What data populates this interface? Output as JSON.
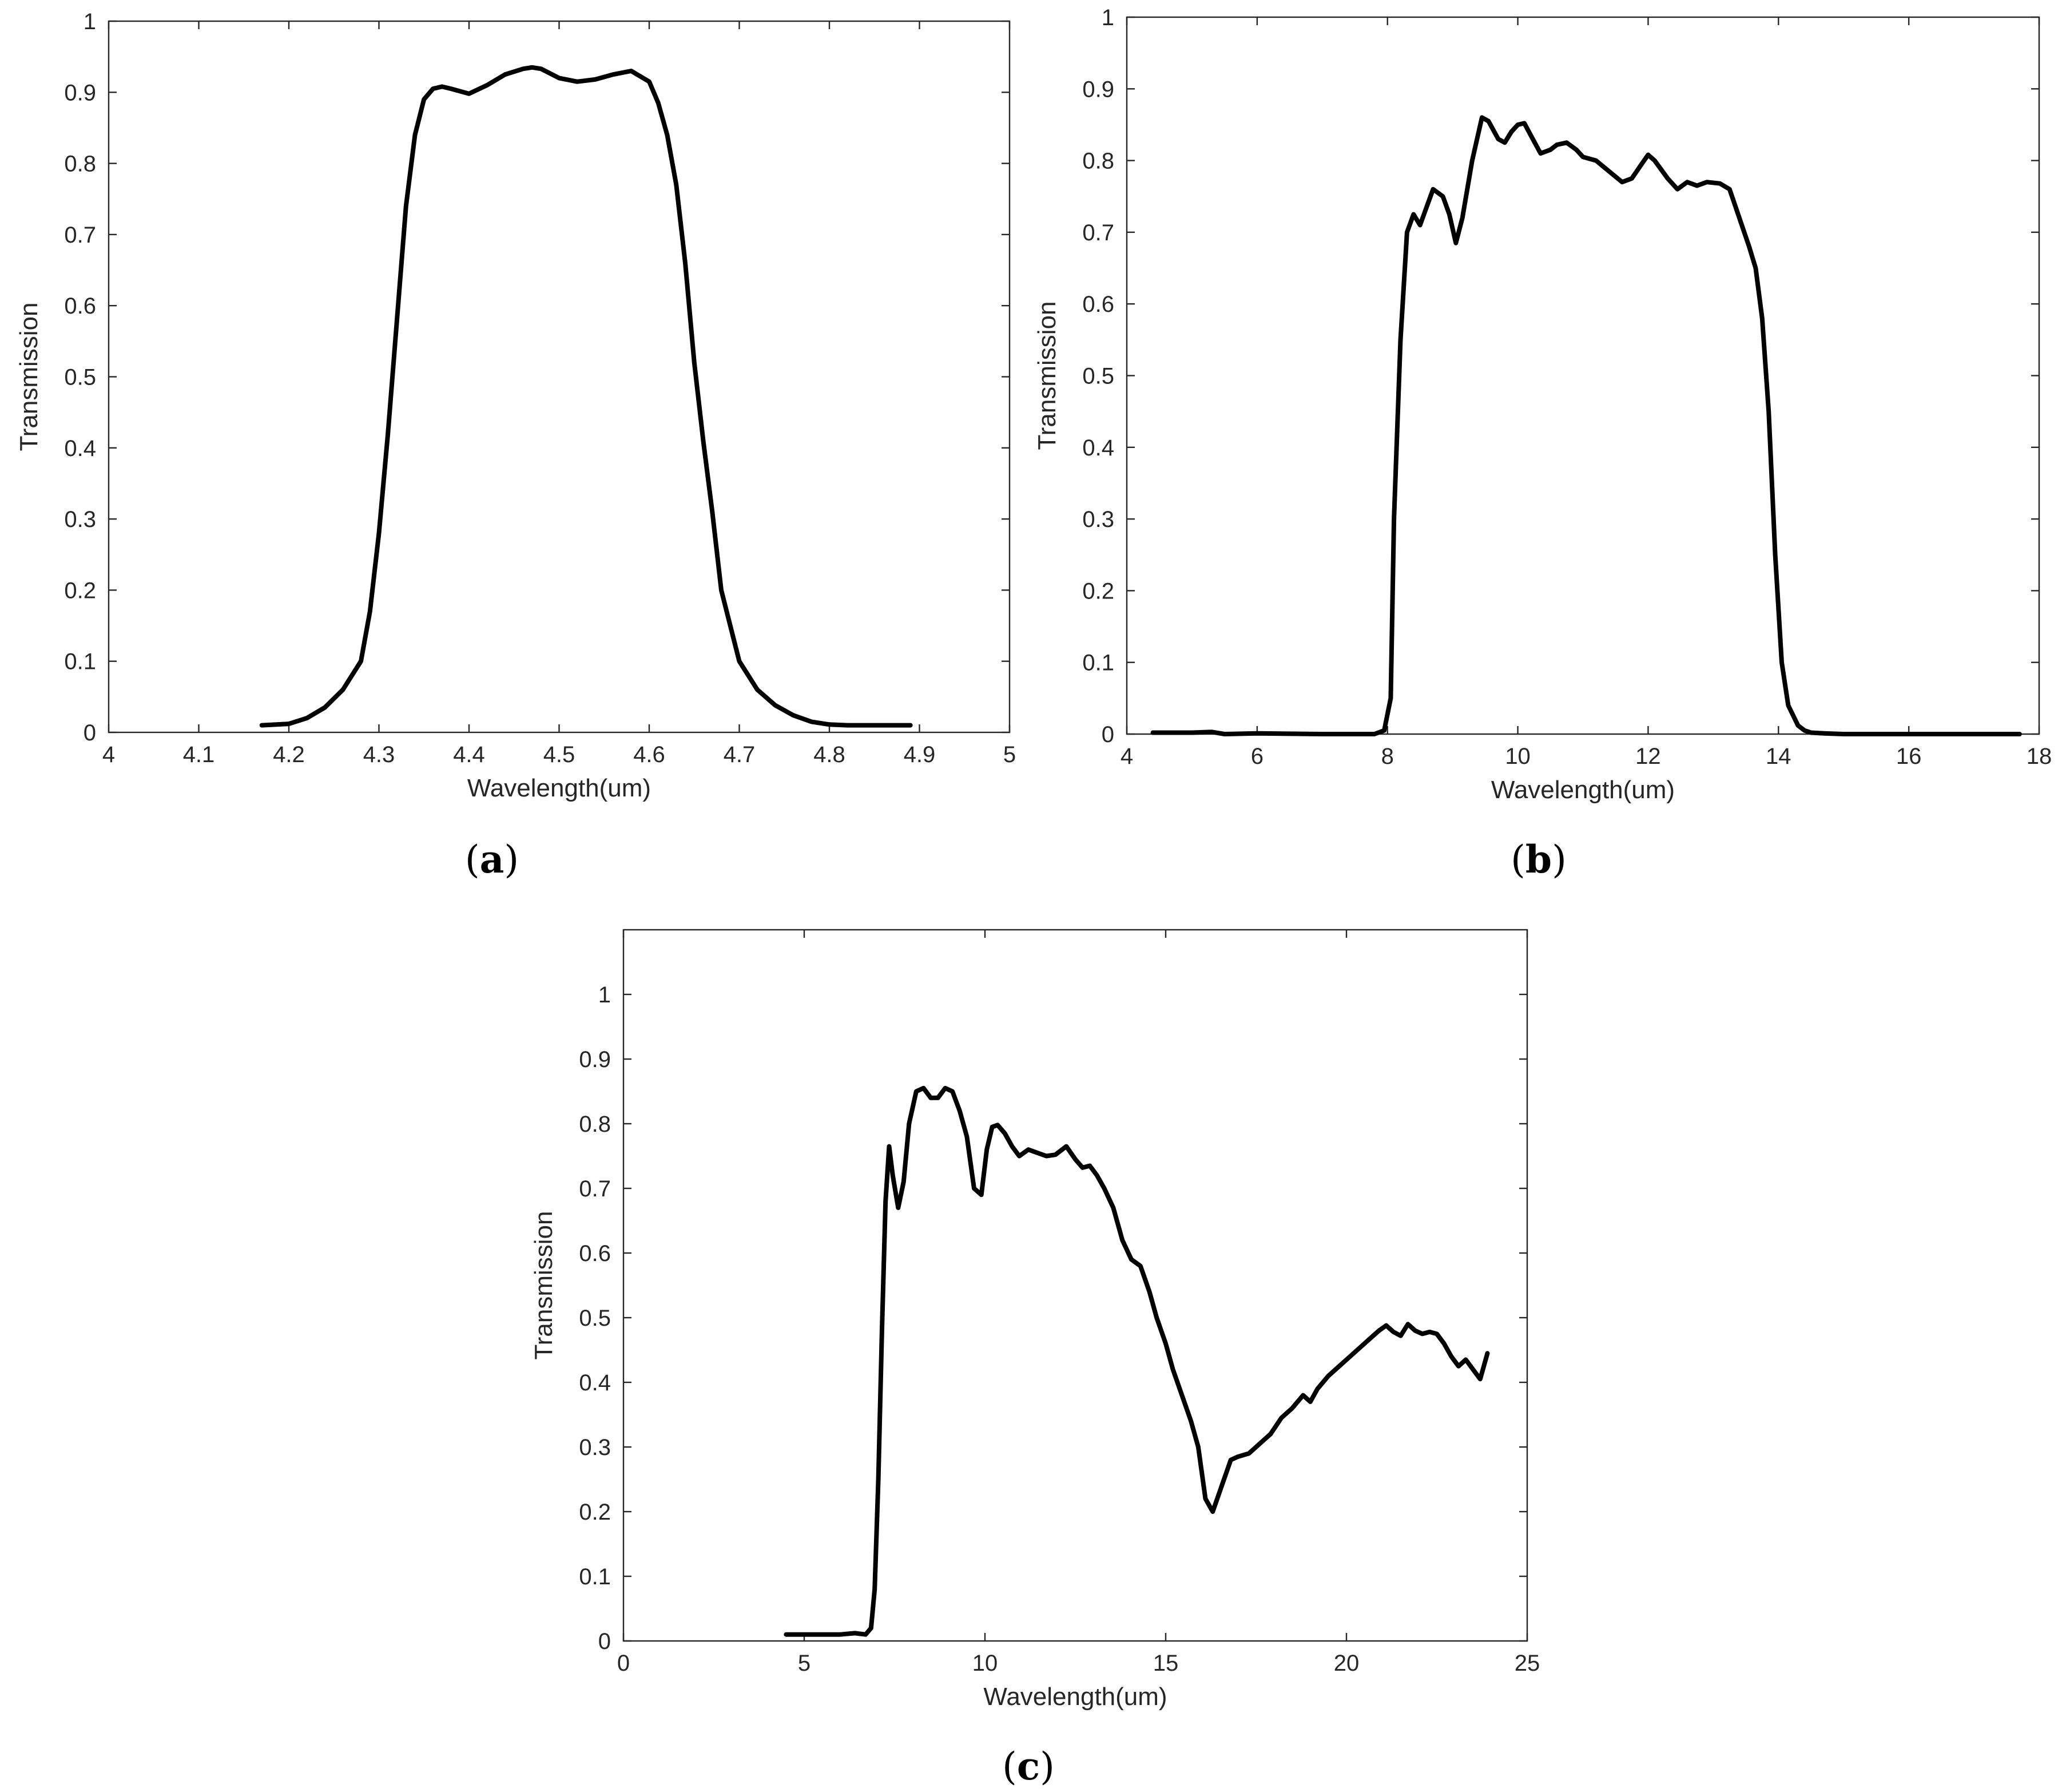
{
  "chart_data": [
    {
      "id": "a",
      "type": "line",
      "panel_label": "a",
      "xlabel": "Wavelength(um)",
      "ylabel": "Transmission",
      "xlim": [
        4,
        5
      ],
      "ylim": [
        0,
        1
      ],
      "xticks": [
        4,
        4.1,
        4.2,
        4.3,
        4.4,
        4.5,
        4.6,
        4.7,
        4.8,
        4.9,
        5
      ],
      "yticks": [
        0,
        0.1,
        0.2,
        0.3,
        0.4,
        0.5,
        0.6,
        0.7,
        0.8,
        0.9,
        1
      ],
      "grid": false,
      "series": [
        {
          "x": [
            4.17,
            4.2,
            4.22,
            4.24,
            4.26,
            4.28,
            4.29,
            4.3,
            4.31,
            4.32,
            4.33,
            4.34,
            4.35,
            4.36,
            4.37,
            4.38,
            4.4,
            4.42,
            4.44,
            4.46,
            4.47,
            4.48,
            4.5,
            4.52,
            4.54,
            4.56,
            4.58,
            4.6,
            4.61,
            4.62,
            4.63,
            4.64,
            4.65,
            4.66,
            4.67,
            4.68,
            4.7,
            4.72,
            4.74,
            4.76,
            4.78,
            4.8,
            4.82,
            4.84,
            4.89
          ],
          "y": [
            0.01,
            0.012,
            0.02,
            0.035,
            0.06,
            0.1,
            0.17,
            0.28,
            0.42,
            0.58,
            0.74,
            0.84,
            0.89,
            0.905,
            0.908,
            0.905,
            0.898,
            0.91,
            0.925,
            0.933,
            0.935,
            0.933,
            0.92,
            0.915,
            0.918,
            0.925,
            0.93,
            0.915,
            0.885,
            0.84,
            0.77,
            0.66,
            0.52,
            0.41,
            0.31,
            0.2,
            0.1,
            0.06,
            0.038,
            0.024,
            0.015,
            0.011,
            0.01,
            0.01,
            0.01
          ]
        }
      ]
    },
    {
      "id": "b",
      "type": "line",
      "panel_label": "b",
      "xlabel": "Wavelength(um)",
      "ylabel": "Transmission",
      "xlim": [
        4,
        18
      ],
      "ylim": [
        0,
        1
      ],
      "xticks": [
        4,
        6,
        8,
        10,
        12,
        14,
        16,
        18
      ],
      "yticks": [
        0,
        0.1,
        0.2,
        0.3,
        0.4,
        0.5,
        0.6,
        0.7,
        0.8,
        0.9,
        1
      ],
      "grid": false,
      "series": [
        {
          "x": [
            4.4,
            5.0,
            5.3,
            5.5,
            6.0,
            7.0,
            7.8,
            7.95,
            8.05,
            8.1,
            8.2,
            8.3,
            8.4,
            8.5,
            8.6,
            8.7,
            8.85,
            8.95,
            9.05,
            9.15,
            9.3,
            9.45,
            9.55,
            9.7,
            9.8,
            9.9,
            10.0,
            10.1,
            10.2,
            10.35,
            10.5,
            10.6,
            10.75,
            10.9,
            11.0,
            11.2,
            11.4,
            11.6,
            11.75,
            11.9,
            12.0,
            12.1,
            12.3,
            12.45,
            12.6,
            12.75,
            12.9,
            13.1,
            13.25,
            13.4,
            13.55,
            13.65,
            13.75,
            13.85,
            13.95,
            14.05,
            14.15,
            14.3,
            14.4,
            14.5,
            14.7,
            15.0,
            16.0,
            17.0,
            17.7
          ],
          "y": [
            0.002,
            0.002,
            0.003,
            0.0,
            0.001,
            0.0,
            0.0,
            0.005,
            0.05,
            0.3,
            0.55,
            0.7,
            0.725,
            0.71,
            0.735,
            0.76,
            0.75,
            0.725,
            0.685,
            0.72,
            0.8,
            0.86,
            0.855,
            0.83,
            0.825,
            0.84,
            0.85,
            0.852,
            0.835,
            0.81,
            0.815,
            0.822,
            0.825,
            0.815,
            0.805,
            0.8,
            0.785,
            0.77,
            0.775,
            0.795,
            0.808,
            0.8,
            0.775,
            0.76,
            0.77,
            0.765,
            0.77,
            0.768,
            0.76,
            0.72,
            0.68,
            0.65,
            0.58,
            0.45,
            0.25,
            0.1,
            0.04,
            0.012,
            0.005,
            0.002,
            0.001,
            0.0,
            0.0,
            0.0,
            0.0
          ]
        }
      ]
    },
    {
      "id": "c",
      "type": "line",
      "panel_label": "c",
      "xlabel": "Wavelength(um)",
      "ylabel": "Transmission",
      "xlim": [
        0,
        25
      ],
      "ylim": [
        0,
        1.1
      ],
      "xticks": [
        0,
        5,
        10,
        15,
        20,
        25
      ],
      "yticks": [
        0,
        0.1,
        0.2,
        0.3,
        0.4,
        0.5,
        0.6,
        0.7,
        0.8,
        0.9,
        1
      ],
      "grid": false,
      "series": [
        {
          "x": [
            4.5,
            5.5,
            6.0,
            6.4,
            6.7,
            6.85,
            6.95,
            7.05,
            7.15,
            7.25,
            7.35,
            7.45,
            7.6,
            7.75,
            7.9,
            8.1,
            8.3,
            8.5,
            8.7,
            8.9,
            9.1,
            9.3,
            9.5,
            9.7,
            9.9,
            10.05,
            10.2,
            10.35,
            10.55,
            10.75,
            10.95,
            11.2,
            11.45,
            11.7,
            11.95,
            12.25,
            12.5,
            12.7,
            12.9,
            13.1,
            13.3,
            13.55,
            13.8,
            14.05,
            14.3,
            14.55,
            14.75,
            15.0,
            15.2,
            15.45,
            15.7,
            15.9,
            16.1,
            16.3,
            16.55,
            16.8,
            17.0,
            17.3,
            17.6,
            17.9,
            18.2,
            18.5,
            18.8,
            19.0,
            19.2,
            19.5,
            19.8,
            20.1,
            20.4,
            20.7,
            20.9,
            21.1,
            21.3,
            21.5,
            21.7,
            21.9,
            22.1,
            22.3,
            22.5,
            22.7,
            22.9,
            23.1,
            23.3,
            23.5,
            23.7,
            23.9
          ],
          "y": [
            0.01,
            0.01,
            0.01,
            0.012,
            0.01,
            0.02,
            0.08,
            0.25,
            0.48,
            0.68,
            0.765,
            0.72,
            0.67,
            0.71,
            0.8,
            0.85,
            0.855,
            0.84,
            0.84,
            0.855,
            0.85,
            0.82,
            0.78,
            0.7,
            0.69,
            0.76,
            0.795,
            0.798,
            0.785,
            0.765,
            0.75,
            0.76,
            0.755,
            0.75,
            0.752,
            0.765,
            0.745,
            0.732,
            0.735,
            0.72,
            0.7,
            0.67,
            0.62,
            0.59,
            0.58,
            0.54,
            0.5,
            0.46,
            0.42,
            0.38,
            0.34,
            0.3,
            0.22,
            0.2,
            0.24,
            0.28,
            0.285,
            0.29,
            0.305,
            0.32,
            0.345,
            0.36,
            0.38,
            0.37,
            0.39,
            0.41,
            0.425,
            0.44,
            0.455,
            0.47,
            0.48,
            0.488,
            0.478,
            0.472,
            0.49,
            0.48,
            0.475,
            0.478,
            0.475,
            0.46,
            0.44,
            0.425,
            0.435,
            0.42,
            0.405,
            0.445
          ]
        }
      ]
    }
  ]
}
